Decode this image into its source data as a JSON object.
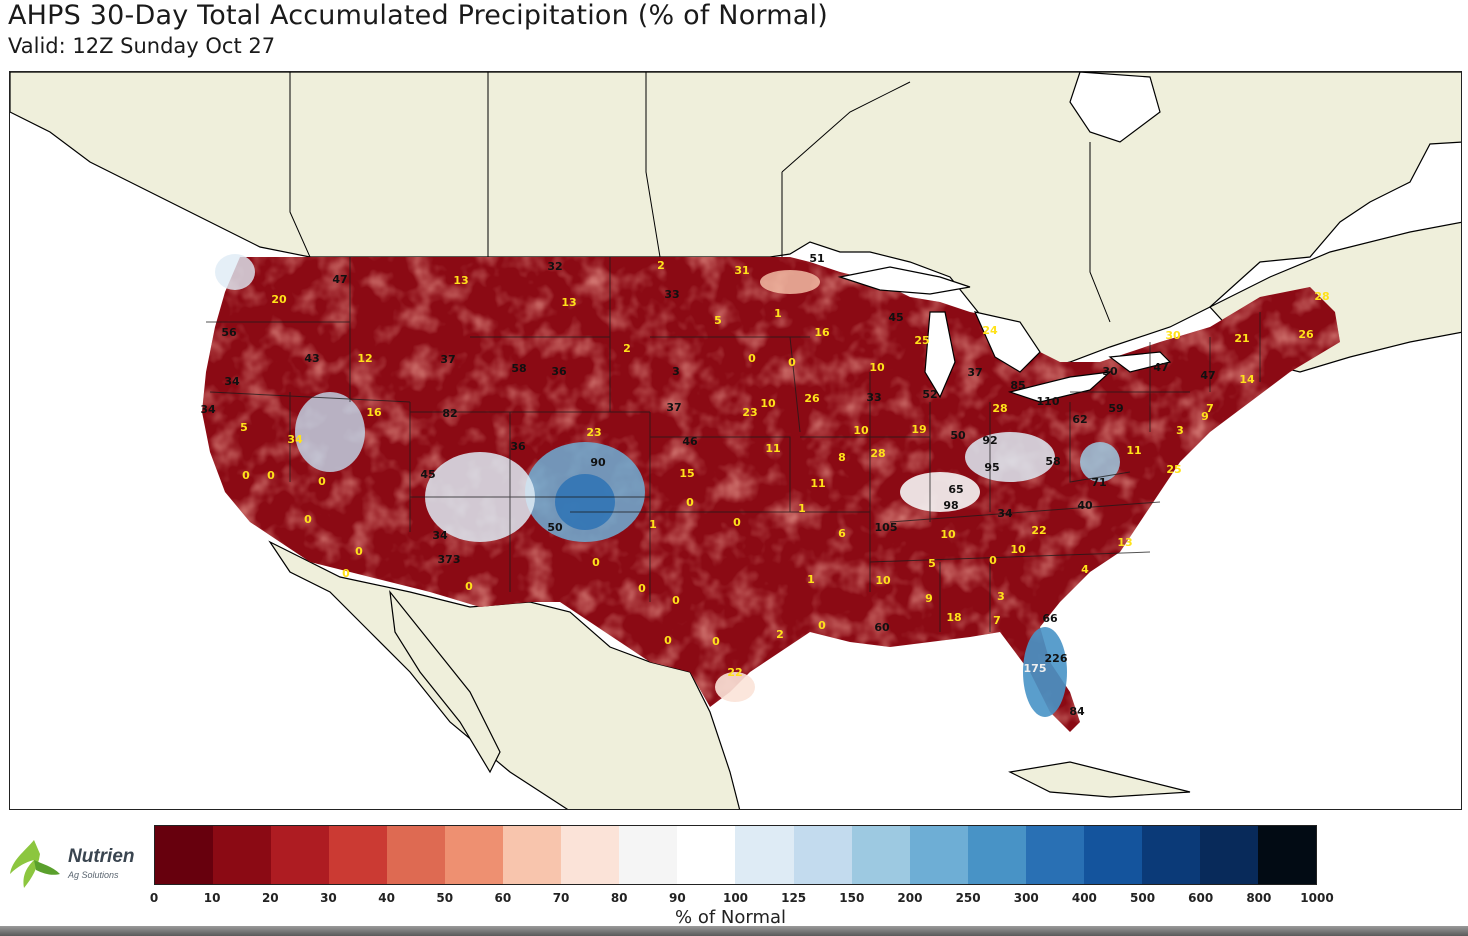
{
  "header": {
    "title": "AHPS 30-Day Total Accumulated Precipitation (% of Normal)",
    "subtitle": "Valid: 12Z Sunday Oct 27"
  },
  "logo": {
    "name": "Nutrien",
    "tagline": "Ag Solutions"
  },
  "legend": {
    "label": "% of Normal",
    "ticks": [
      "0",
      "10",
      "20",
      "30",
      "40",
      "50",
      "60",
      "70",
      "80",
      "90",
      "100",
      "125",
      "150",
      "200",
      "250",
      "300",
      "400",
      "500",
      "600",
      "800",
      "1000"
    ],
    "colors": [
      "#67000d",
      "#8b0a14",
      "#ae1c22",
      "#cb3a33",
      "#de6a52",
      "#ee9071",
      "#f8c5ad",
      "#fbe3d8",
      "#f5f5f5",
      "#ffffff",
      "#deebf5",
      "#c3dbee",
      "#9dc9e1",
      "#6eaed5",
      "#4893c6",
      "#2970b4",
      "#14549d",
      "#0b3a78",
      "#082a5a",
      "#020b14"
    ]
  },
  "map": {
    "land_color": "#efefdb",
    "border_color": "#000000",
    "label_colors": {
      "yellow": "#ffe21a",
      "dark": "#111111",
      "light": "#f0f0f0"
    },
    "labels": [
      {
        "text": "47",
        "c": "dark"
      },
      {
        "text": "20",
        "c": "yellow"
      },
      {
        "text": "13",
        "c": "yellow"
      },
      {
        "text": "32",
        "c": "dark"
      },
      {
        "text": "2",
        "c": "yellow"
      },
      {
        "text": "31",
        "c": "yellow"
      },
      {
        "text": "51",
        "c": "dark"
      },
      {
        "text": "13",
        "c": "yellow"
      },
      {
        "text": "33",
        "c": "dark"
      },
      {
        "text": "56",
        "c": "dark"
      },
      {
        "text": "5",
        "c": "yellow"
      },
      {
        "text": "1",
        "c": "yellow"
      },
      {
        "text": "16",
        "c": "yellow"
      },
      {
        "text": "45",
        "c": "dark"
      },
      {
        "text": "25",
        "c": "yellow"
      },
      {
        "text": "24",
        "c": "yellow"
      },
      {
        "text": "28",
        "c": "yellow"
      },
      {
        "text": "26",
        "c": "yellow"
      },
      {
        "text": "21",
        "c": "yellow"
      },
      {
        "text": "30",
        "c": "yellow"
      },
      {
        "text": "43",
        "c": "dark"
      },
      {
        "text": "12",
        "c": "yellow"
      },
      {
        "text": "37",
        "c": "dark"
      },
      {
        "text": "58",
        "c": "dark"
      },
      {
        "text": "36",
        "c": "dark"
      },
      {
        "text": "2",
        "c": "yellow"
      },
      {
        "text": "0",
        "c": "yellow"
      },
      {
        "text": "0",
        "c": "yellow"
      },
      {
        "text": "10",
        "c": "yellow"
      },
      {
        "text": "37",
        "c": "dark"
      },
      {
        "text": "85",
        "c": "dark"
      },
      {
        "text": "30",
        "c": "dark"
      },
      {
        "text": "47",
        "c": "dark"
      },
      {
        "text": "47",
        "c": "dark"
      },
      {
        "text": "14",
        "c": "yellow"
      },
      {
        "text": "34",
        "c": "dark"
      },
      {
        "text": "3",
        "c": "dark"
      },
      {
        "text": "34",
        "c": "dark"
      },
      {
        "text": "16",
        "c": "yellow"
      },
      {
        "text": "82",
        "c": "dark"
      },
      {
        "text": "37",
        "c": "dark"
      },
      {
        "text": "23",
        "c": "yellow"
      },
      {
        "text": "10",
        "c": "yellow"
      },
      {
        "text": "26",
        "c": "yellow"
      },
      {
        "text": "33",
        "c": "dark"
      },
      {
        "text": "52",
        "c": "dark"
      },
      {
        "text": "28",
        "c": "yellow"
      },
      {
        "text": "110",
        "c": "dark"
      },
      {
        "text": "59",
        "c": "dark"
      },
      {
        "text": "7",
        "c": "yellow"
      },
      {
        "text": "9",
        "c": "yellow"
      },
      {
        "text": "5",
        "c": "yellow"
      },
      {
        "text": "34",
        "c": "yellow"
      },
      {
        "text": "36",
        "c": "dark"
      },
      {
        "text": "23",
        "c": "yellow"
      },
      {
        "text": "46",
        "c": "dark"
      },
      {
        "text": "10",
        "c": "yellow"
      },
      {
        "text": "19",
        "c": "yellow"
      },
      {
        "text": "50",
        "c": "dark"
      },
      {
        "text": "92",
        "c": "dark"
      },
      {
        "text": "62",
        "c": "dark"
      },
      {
        "text": "3",
        "c": "yellow"
      },
      {
        "text": "0",
        "c": "yellow"
      },
      {
        "text": "0",
        "c": "yellow"
      },
      {
        "text": "0",
        "c": "yellow"
      },
      {
        "text": "45",
        "c": "dark"
      },
      {
        "text": "90",
        "c": "dark"
      },
      {
        "text": "11",
        "c": "yellow"
      },
      {
        "text": "8",
        "c": "yellow"
      },
      {
        "text": "28",
        "c": "yellow"
      },
      {
        "text": "95",
        "c": "dark"
      },
      {
        "text": "58",
        "c": "dark"
      },
      {
        "text": "11",
        "c": "yellow"
      },
      {
        "text": "15",
        "c": "yellow"
      },
      {
        "text": "11",
        "c": "yellow"
      },
      {
        "text": "65",
        "c": "dark"
      },
      {
        "text": "71",
        "c": "dark"
      },
      {
        "text": "25",
        "c": "yellow"
      },
      {
        "text": "0",
        "c": "yellow"
      },
      {
        "text": "0",
        "c": "yellow"
      },
      {
        "text": "0",
        "c": "yellow"
      },
      {
        "text": "98",
        "c": "dark"
      },
      {
        "text": "34",
        "c": "dark"
      },
      {
        "text": "40",
        "c": "dark"
      },
      {
        "text": "50",
        "c": "dark"
      },
      {
        "text": "1",
        "c": "yellow"
      },
      {
        "text": "0",
        "c": "yellow"
      },
      {
        "text": "6",
        "c": "yellow"
      },
      {
        "text": "105",
        "c": "dark"
      },
      {
        "text": "10",
        "c": "yellow"
      },
      {
        "text": "22",
        "c": "yellow"
      },
      {
        "text": "34",
        "c": "dark"
      },
      {
        "text": "0",
        "c": "yellow"
      },
      {
        "text": "1",
        "c": "yellow"
      },
      {
        "text": "10",
        "c": "yellow"
      },
      {
        "text": "13",
        "c": "yellow"
      },
      {
        "text": "373",
        "c": "dark"
      },
      {
        "text": "0",
        "c": "yellow"
      },
      {
        "text": "1",
        "c": "yellow"
      },
      {
        "text": "10",
        "c": "yellow"
      },
      {
        "text": "5",
        "c": "yellow"
      },
      {
        "text": "0",
        "c": "yellow"
      },
      {
        "text": "4",
        "c": "yellow"
      },
      {
        "text": "0",
        "c": "yellow"
      },
      {
        "text": "0",
        "c": "yellow"
      },
      {
        "text": "0",
        "c": "yellow"
      },
      {
        "text": "9",
        "c": "yellow"
      },
      {
        "text": "3",
        "c": "yellow"
      },
      {
        "text": "0",
        "c": "yellow"
      },
      {
        "text": "0",
        "c": "yellow"
      },
      {
        "text": "2",
        "c": "yellow"
      },
      {
        "text": "0",
        "c": "yellow"
      },
      {
        "text": "60",
        "c": "dark"
      },
      {
        "text": "18",
        "c": "yellow"
      },
      {
        "text": "7",
        "c": "yellow"
      },
      {
        "text": "66",
        "c": "dark"
      },
      {
        "text": "226",
        "c": "dark"
      },
      {
        "text": "175",
        "c": "light"
      },
      {
        "text": "22",
        "c": "yellow"
      },
      {
        "text": "84",
        "c": "dark"
      }
    ]
  }
}
